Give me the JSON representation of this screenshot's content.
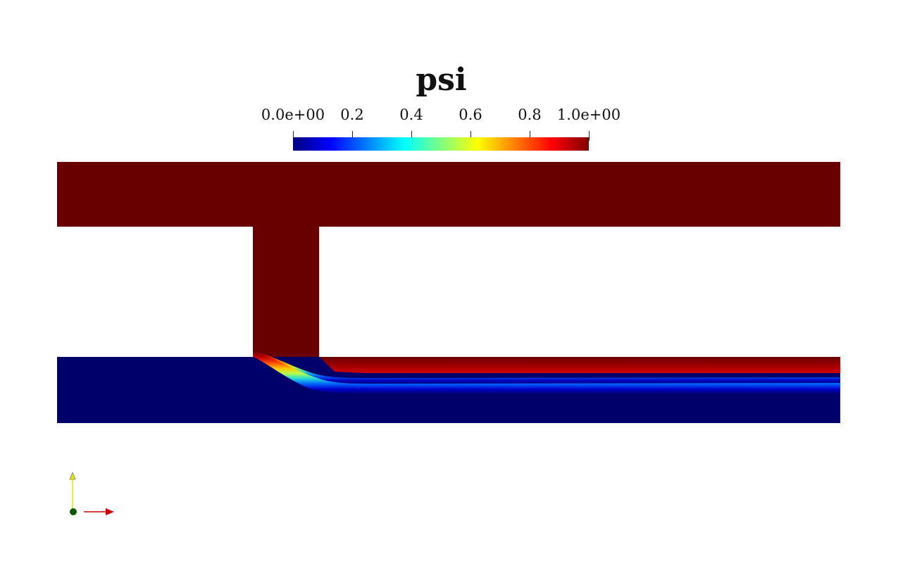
{
  "colorbar": {
    "title": "psi",
    "range": [
      0,
      1
    ],
    "ticks": [
      {
        "value": 0.0,
        "label": "0.0e+00"
      },
      {
        "value": 0.2,
        "label": "0.2"
      },
      {
        "value": 0.4,
        "label": "0.4"
      },
      {
        "value": 0.6,
        "label": "0.6"
      },
      {
        "value": 0.8,
        "label": "0.8"
      },
      {
        "value": 1.0,
        "label": "1.0e+00"
      }
    ],
    "colormap": [
      "#00007f",
      "#0000ff",
      "#007fff",
      "#00ffff",
      "#7fff7f",
      "#ffff00",
      "#ff7f00",
      "#ff0000",
      "#7f0000"
    ]
  },
  "field": {
    "high_color": "#690000",
    "low_color": "#00006b",
    "interface_color_stops": [
      "#690000",
      "#c80000",
      "#ff5000",
      "#ffc800",
      "#b4ff4b",
      "#28dcd2",
      "#0064ff",
      "#0000c8",
      "#00006b"
    ]
  },
  "axes_triad": {
    "y_axis_color": "#e8e800",
    "x_axis_color": "#cc0000",
    "origin_color": "#0a5a0a"
  }
}
